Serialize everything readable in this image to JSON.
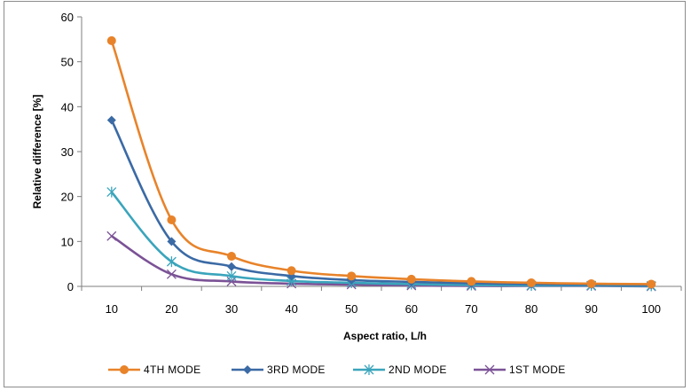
{
  "chart_data": {
    "type": "line",
    "xlabel": "Aspect ratio, L/h",
    "ylabel": "Relative difference [%]",
    "categories": [
      "10",
      "20",
      "30",
      "40",
      "50",
      "60",
      "70",
      "80",
      "90",
      "100"
    ],
    "x": [
      10,
      20,
      30,
      40,
      50,
      60,
      70,
      80,
      90,
      100
    ],
    "ylim": [
      0,
      60
    ],
    "yticks": [
      "0",
      "10",
      "20",
      "30",
      "40",
      "50",
      "60"
    ],
    "grid": false,
    "legend_position": "bottom",
    "series": [
      {
        "name": "4TH MODE",
        "color": "#E8832A",
        "marker": "circle",
        "values": [
          54.7,
          14.8,
          6.7,
          3.5,
          2.3,
          1.6,
          1.1,
          0.8,
          0.6,
          0.5
        ]
      },
      {
        "name": "3RD MODE",
        "color": "#3B6AA5",
        "marker": "diamond",
        "values": [
          37.0,
          10.0,
          4.4,
          2.3,
          1.4,
          1.0,
          0.7,
          0.5,
          0.4,
          0.3
        ]
      },
      {
        "name": "2ND MODE",
        "color": "#3AA5BC",
        "marker": "star",
        "values": [
          21.0,
          5.5,
          2.3,
          1.2,
          0.8,
          0.5,
          0.3,
          0.2,
          0.2,
          0.1
        ]
      },
      {
        "name": "1ST MODE",
        "color": "#7B5296",
        "marker": "x",
        "values": [
          11.2,
          2.7,
          1.1,
          0.6,
          0.4,
          0.2,
          0.1,
          0.1,
          0.1,
          0.0
        ]
      }
    ]
  }
}
